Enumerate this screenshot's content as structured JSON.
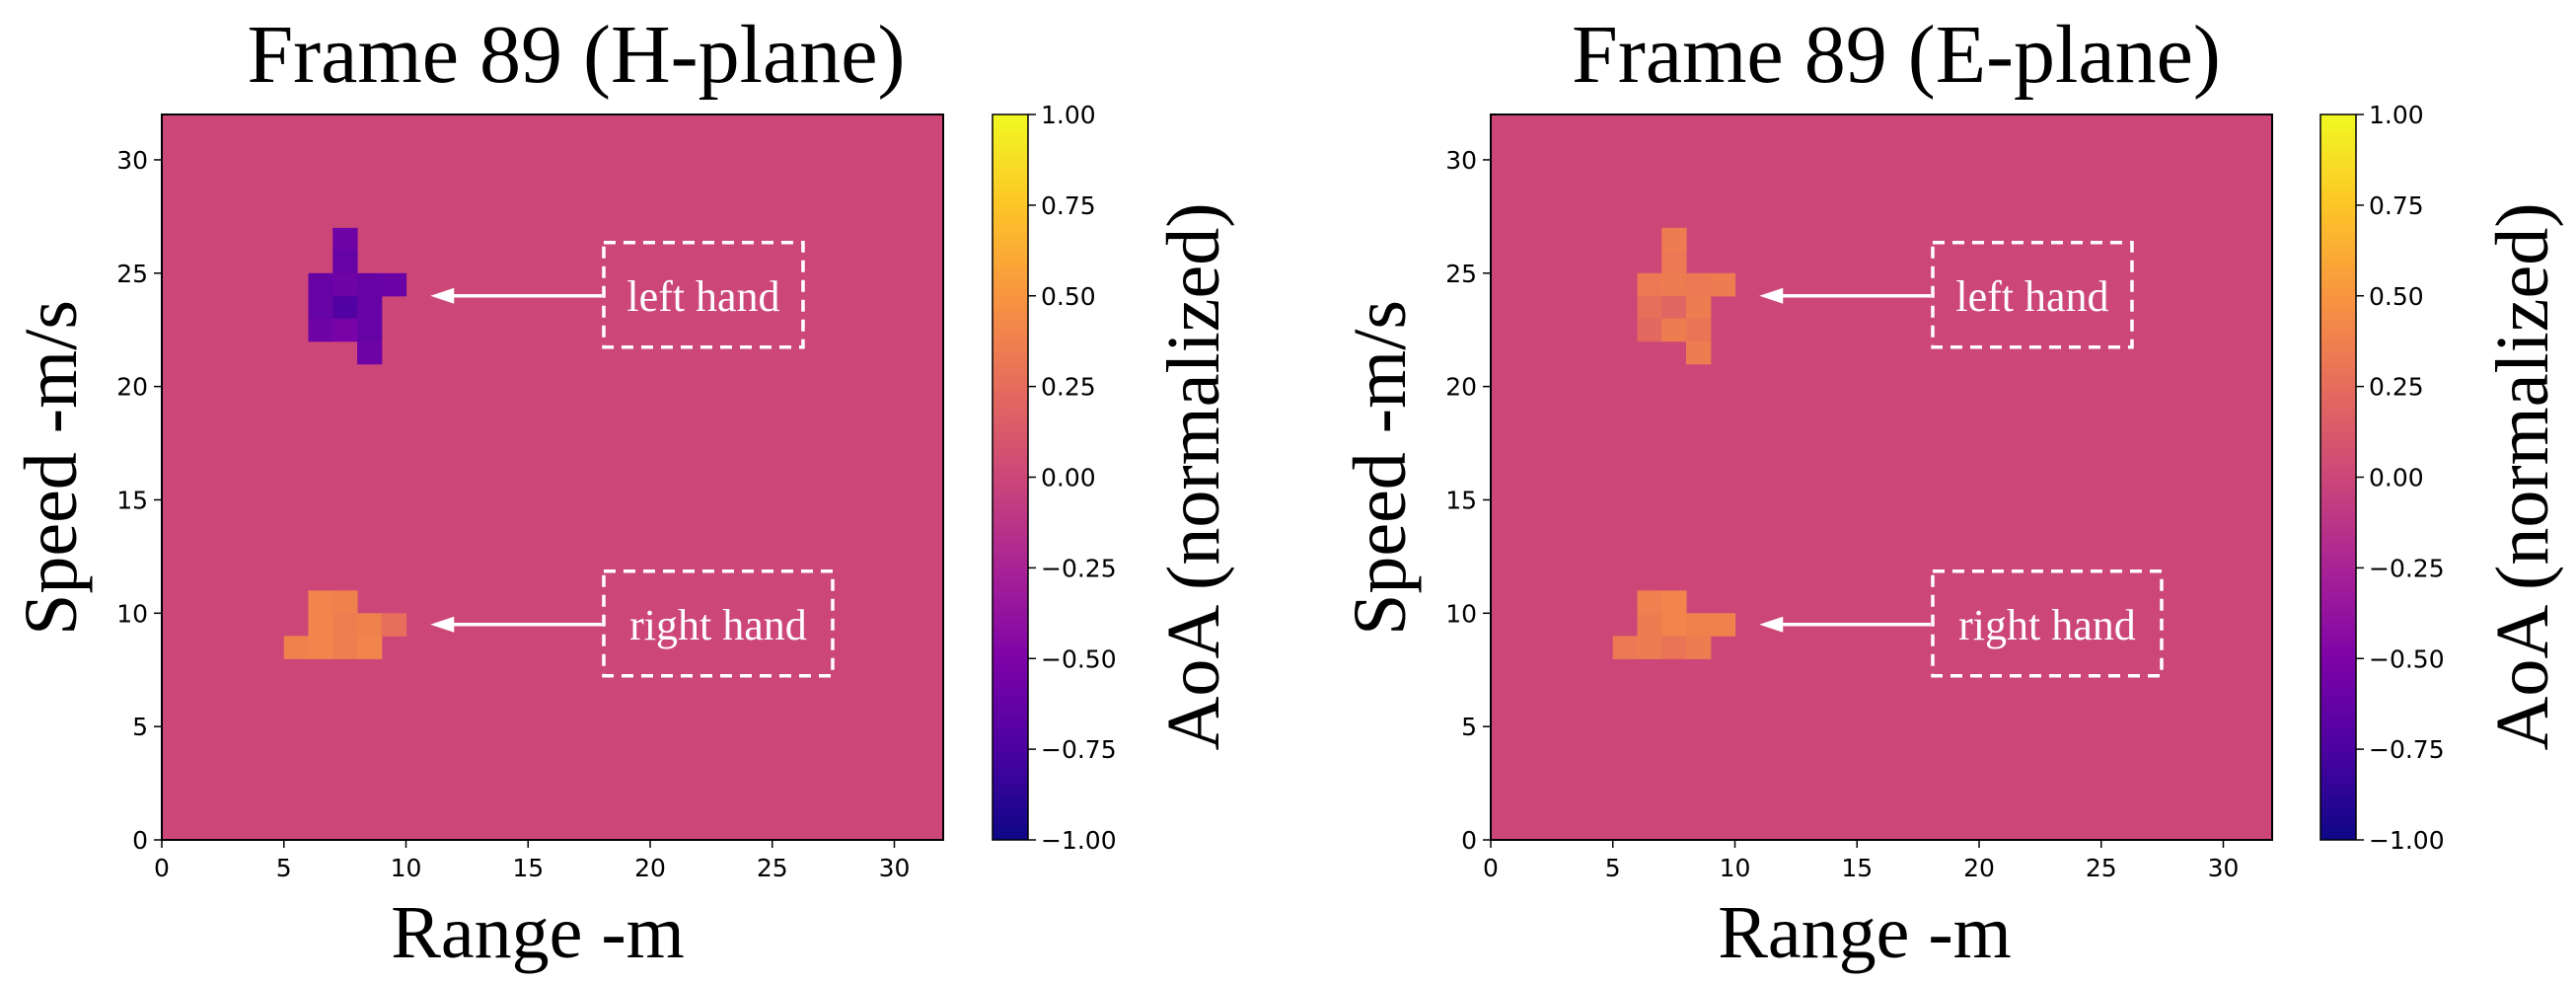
{
  "chart_data": [
    {
      "type": "heatmap",
      "title": "Frame 89 (H-plane)",
      "xlabel": "Range -m",
      "ylabel": "Speed -m/s",
      "xlim": [
        0,
        32
      ],
      "ylim": [
        0,
        32
      ],
      "xticks": [
        "0",
        "5",
        "10",
        "15",
        "20",
        "25",
        "30"
      ],
      "yticks": [
        "0",
        "5",
        "10",
        "15",
        "20",
        "25",
        "30"
      ],
      "colormap": "plasma",
      "background_value": 0.0,
      "colorbar": {
        "label": "AoA (normalized)",
        "vmin": -1.0,
        "vmax": 1.0,
        "ticks": [
          "1.00",
          "0.75",
          "0.50",
          "0.25",
          "0.00",
          "−0.25",
          "−0.50",
          "−0.75",
          "−1.00"
        ]
      },
      "cells": [
        {
          "x": 7,
          "y": 26,
          "value": -0.58
        },
        {
          "x": 7,
          "y": 25,
          "value": -0.62
        },
        {
          "x": 6,
          "y": 24,
          "value": -0.62
        },
        {
          "x": 7,
          "y": 24,
          "value": -0.58
        },
        {
          "x": 8,
          "y": 24,
          "value": -0.62
        },
        {
          "x": 9,
          "y": 24,
          "value": -0.6
        },
        {
          "x": 6,
          "y": 23,
          "value": -0.62
        },
        {
          "x": 7,
          "y": 23,
          "value": -0.72
        },
        {
          "x": 8,
          "y": 23,
          "value": -0.62
        },
        {
          "x": 6,
          "y": 22,
          "value": -0.58
        },
        {
          "x": 7,
          "y": 22,
          "value": -0.52
        },
        {
          "x": 8,
          "y": 22,
          "value": -0.62
        },
        {
          "x": 8,
          "y": 21,
          "value": -0.58
        },
        {
          "x": 6,
          "y": 10,
          "value": 0.4
        },
        {
          "x": 7,
          "y": 10,
          "value": 0.38
        },
        {
          "x": 6,
          "y": 9,
          "value": 0.4
        },
        {
          "x": 7,
          "y": 9,
          "value": 0.36
        },
        {
          "x": 8,
          "y": 9,
          "value": 0.38
        },
        {
          "x": 9,
          "y": 9,
          "value": 0.26
        },
        {
          "x": 5,
          "y": 8,
          "value": 0.38
        },
        {
          "x": 6,
          "y": 8,
          "value": 0.4
        },
        {
          "x": 7,
          "y": 8,
          "value": 0.36
        },
        {
          "x": 8,
          "y": 8,
          "value": 0.4
        }
      ],
      "annotations": [
        {
          "text": "left hand",
          "arrow_to": [
            11,
            24
          ]
        },
        {
          "text": "right hand",
          "arrow_to": [
            11,
            9.5
          ]
        }
      ]
    },
    {
      "type": "heatmap",
      "title": "Frame 89 (E-plane)",
      "xlabel": "Range -m",
      "ylabel": "Speed -m/s",
      "xlim": [
        0,
        32
      ],
      "ylim": [
        0,
        32
      ],
      "xticks": [
        "0",
        "5",
        "10",
        "15",
        "20",
        "25",
        "30"
      ],
      "yticks": [
        "0",
        "5",
        "10",
        "15",
        "20",
        "25",
        "30"
      ],
      "colormap": "plasma",
      "background_value": 0.0,
      "colorbar": {
        "label": "AoA (normalized)",
        "vmin": -1.0,
        "vmax": 1.0,
        "ticks": [
          "1.00",
          "0.75",
          "0.50",
          "0.25",
          "0.00",
          "−0.25",
          "−0.50",
          "−0.75",
          "−1.00"
        ]
      },
      "cells": [
        {
          "x": 7,
          "y": 26,
          "value": 0.35
        },
        {
          "x": 7,
          "y": 25,
          "value": 0.33
        },
        {
          "x": 6,
          "y": 24,
          "value": 0.33
        },
        {
          "x": 7,
          "y": 24,
          "value": 0.35
        },
        {
          "x": 8,
          "y": 24,
          "value": 0.33
        },
        {
          "x": 9,
          "y": 24,
          "value": 0.35
        },
        {
          "x": 6,
          "y": 23,
          "value": 0.26
        },
        {
          "x": 7,
          "y": 23,
          "value": 0.2
        },
        {
          "x": 8,
          "y": 23,
          "value": 0.35
        },
        {
          "x": 6,
          "y": 22,
          "value": 0.22
        },
        {
          "x": 7,
          "y": 22,
          "value": 0.35
        },
        {
          "x": 8,
          "y": 22,
          "value": 0.3
        },
        {
          "x": 8,
          "y": 21,
          "value": 0.35
        },
        {
          "x": 6,
          "y": 10,
          "value": 0.37
        },
        {
          "x": 7,
          "y": 10,
          "value": 0.4
        },
        {
          "x": 6,
          "y": 9,
          "value": 0.35
        },
        {
          "x": 7,
          "y": 9,
          "value": 0.4
        },
        {
          "x": 8,
          "y": 9,
          "value": 0.38
        },
        {
          "x": 9,
          "y": 9,
          "value": 0.38
        },
        {
          "x": 5,
          "y": 8,
          "value": 0.33
        },
        {
          "x": 6,
          "y": 8,
          "value": 0.35
        },
        {
          "x": 7,
          "y": 8,
          "value": 0.3
        },
        {
          "x": 8,
          "y": 8,
          "value": 0.35
        }
      ],
      "annotations": [
        {
          "text": "left hand",
          "arrow_to": [
            11,
            24
          ]
        },
        {
          "text": "right hand",
          "arrow_to": [
            11,
            9.5
          ]
        }
      ]
    }
  ]
}
